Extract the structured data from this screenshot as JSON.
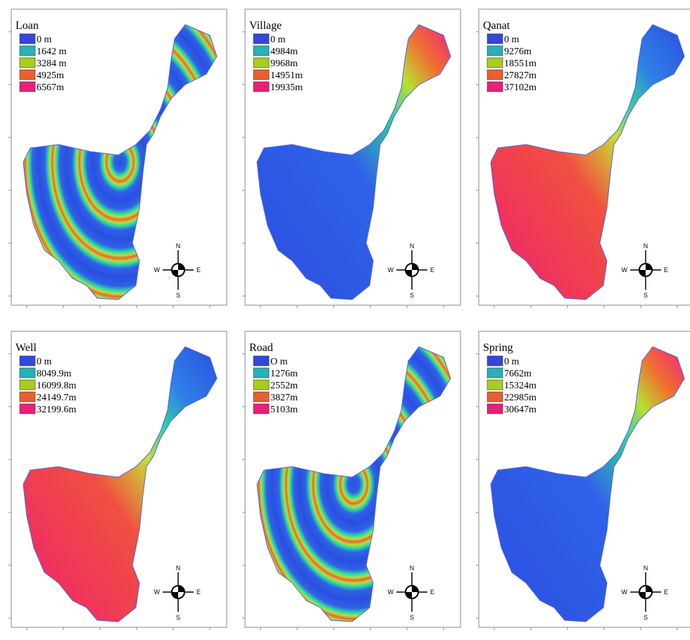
{
  "panels": [
    {
      "title": "Loan",
      "legend": [
        "0 m",
        "1642 m",
        "3284 m",
        "4925m",
        "6567m"
      ]
    },
    {
      "title": "Village",
      "legend": [
        "0 m",
        "4984m",
        "9968m",
        "14951m",
        "19935m"
      ]
    },
    {
      "title": "Qanat",
      "legend": [
        "0 m",
        "9276m",
        "18551m",
        "27827m",
        "37102m"
      ]
    },
    {
      "title": "Well",
      "legend": [
        "0 m",
        "8049.9m",
        "16099.8m",
        "24149.7m",
        "32199.6m"
      ]
    },
    {
      "title": "Road",
      "legend": [
        "O m",
        "1276m",
        "2552m",
        "3827m",
        "5103m"
      ]
    },
    {
      "title": "Spring",
      "legend": [
        "0 m",
        "7662m",
        "15324m",
        "22985m",
        "30647m"
      ]
    }
  ],
  "compass": {
    "n": "N",
    "s": "S",
    "w": "W",
    "e": "E"
  }
}
